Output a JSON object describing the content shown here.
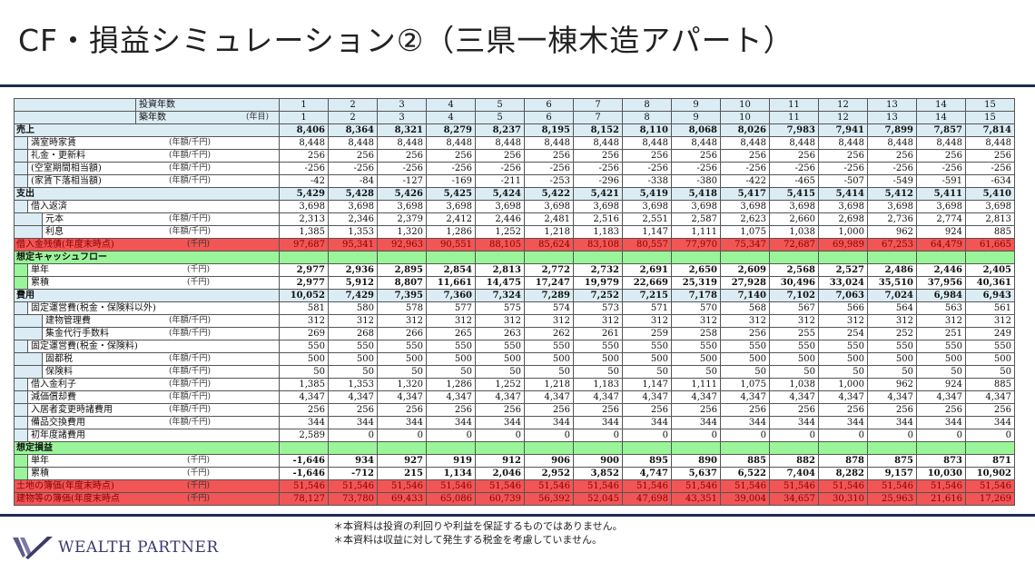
{
  "title": "CF・損益シミュレーション②（三県一棟木造アパート）",
  "table": {
    "rows": [
      {
        "label": "投資年数",
        "unit": "",
        "level": "h",
        "style": "header",
        "values": [
          "1",
          "2",
          "3",
          "4",
          "5",
          "6",
          "7",
          "8",
          "9",
          "10",
          "11",
          "12",
          "13",
          "14",
          "15"
        ]
      },
      {
        "label": "築年数",
        "unit": "(年目)",
        "level": "h",
        "style": "header",
        "values": [
          "1",
          "2",
          "3",
          "4",
          "5",
          "6",
          "7",
          "8",
          "9",
          "10",
          "11",
          "12",
          "13",
          "14",
          "15"
        ]
      },
      {
        "label": "売上",
        "unit": "",
        "level": 0,
        "style": "section",
        "values": [
          "8,406",
          "8,364",
          "8,321",
          "8,279",
          "8,237",
          "8,195",
          "8,152",
          "8,110",
          "8,068",
          "8,026",
          "7,983",
          "7,941",
          "7,899",
          "7,857",
          "7,814"
        ]
      },
      {
        "label": "満室時家賃",
        "unit": "(年額/千円)",
        "level": 1,
        "band": "blue",
        "style": "dash",
        "values": [
          "8,448",
          "8,448",
          "8,448",
          "8,448",
          "8,448",
          "8,448",
          "8,448",
          "8,448",
          "8,448",
          "8,448",
          "8,448",
          "8,448",
          "8,448",
          "8,448",
          "8,448"
        ]
      },
      {
        "label": "礼金・更新料",
        "unit": "(年額/千円)",
        "level": 1,
        "band": "blue",
        "style": "dash",
        "values": [
          "256",
          "256",
          "256",
          "256",
          "256",
          "256",
          "256",
          "256",
          "256",
          "256",
          "256",
          "256",
          "256",
          "256",
          "256"
        ]
      },
      {
        "label": "(空室期間相当額)",
        "unit": "(年額/千円)",
        "level": 1,
        "band": "blue",
        "style": "dash",
        "values": [
          "-256",
          "-256",
          "-256",
          "-256",
          "-256",
          "-256",
          "-256",
          "-256",
          "-256",
          "-256",
          "-256",
          "-256",
          "-256",
          "-256",
          "-256"
        ]
      },
      {
        "label": "(家賃下落相当額)",
        "unit": "(年額/千円)",
        "level": 1,
        "band": "blue",
        "style": "dash",
        "values": [
          "-42",
          "-84",
          "-127",
          "-169",
          "-211",
          "-253",
          "-296",
          "-338",
          "-380",
          "-422",
          "-465",
          "-507",
          "-549",
          "-591",
          "-634"
        ]
      },
      {
        "label": "支出",
        "unit": "",
        "level": 0,
        "style": "section",
        "values": [
          "5,429",
          "5,428",
          "5,426",
          "5,425",
          "5,424",
          "5,422",
          "5,421",
          "5,419",
          "5,418",
          "5,417",
          "5,415",
          "5,414",
          "5,412",
          "5,411",
          "5,410"
        ]
      },
      {
        "label": "借入返済",
        "unit": "",
        "level": 1,
        "band": "blue",
        "style": "",
        "values": [
          "3,698",
          "3,698",
          "3,698",
          "3,698",
          "3,698",
          "3,698",
          "3,698",
          "3,698",
          "3,698",
          "3,698",
          "3,698",
          "3,698",
          "3,698",
          "3,698",
          "3,698"
        ]
      },
      {
        "label": "元本",
        "unit": "(年額/千円)",
        "level": 2,
        "band": "blue",
        "style": "dash",
        "values": [
          "2,313",
          "2,346",
          "2,379",
          "2,412",
          "2,446",
          "2,481",
          "2,516",
          "2,551",
          "2,587",
          "2,623",
          "2,660",
          "2,698",
          "2,736",
          "2,774",
          "2,813"
        ]
      },
      {
        "label": "利息",
        "unit": "(年額/千円)",
        "level": 2,
        "band": "blue",
        "style": "",
        "values": [
          "1,385",
          "1,353",
          "1,320",
          "1,286",
          "1,252",
          "1,218",
          "1,183",
          "1,147",
          "1,111",
          "1,075",
          "1,038",
          "1,000",
          "962",
          "924",
          "885"
        ]
      },
      {
        "label": "借入金残債(年度末時点)",
        "unit": "(千円)",
        "level": 0,
        "style": "red",
        "values": [
          "97,687",
          "95,341",
          "92,963",
          "90,551",
          "88,105",
          "85,624",
          "83,108",
          "80,557",
          "77,970",
          "75,347",
          "72,687",
          "69,989",
          "67,253",
          "64,479",
          "61,665"
        ]
      },
      {
        "label": "想定キャッシュフロー",
        "unit": "",
        "level": 0,
        "style": "green",
        "values": [
          "",
          "",
          "",
          "",
          "",
          "",
          "",
          "",
          "",
          "",
          "",
          "",
          "",
          "",
          ""
        ]
      },
      {
        "label": "単年",
        "unit": "(千円)",
        "level": 1,
        "band": "green",
        "style": "bold",
        "values": [
          "2,977",
          "2,936",
          "2,895",
          "2,854",
          "2,813",
          "2,772",
          "2,732",
          "2,691",
          "2,650",
          "2,609",
          "2,568",
          "2,527",
          "2,486",
          "2,446",
          "2,405"
        ]
      },
      {
        "label": "累積",
        "unit": "(千円)",
        "level": 1,
        "band": "green",
        "style": "bold",
        "values": [
          "2,977",
          "5,912",
          "8,807",
          "11,661",
          "14,475",
          "17,247",
          "19,979",
          "22,669",
          "25,319",
          "27,928",
          "30,496",
          "33,024",
          "35,510",
          "37,956",
          "40,361"
        ]
      },
      {
        "label": "費用",
        "unit": "",
        "level": 0,
        "style": "section",
        "values": [
          "10,052",
          "7,429",
          "7,395",
          "7,360",
          "7,324",
          "7,289",
          "7,252",
          "7,215",
          "7,178",
          "7,140",
          "7,102",
          "7,063",
          "7,024",
          "6,984",
          "6,943"
        ]
      },
      {
        "label": "固定運営費(税金・保険料以外)",
        "unit": "",
        "level": 1,
        "band": "blue",
        "style": "",
        "values": [
          "581",
          "580",
          "578",
          "577",
          "575",
          "574",
          "573",
          "571",
          "570",
          "568",
          "567",
          "566",
          "564",
          "563",
          "561"
        ]
      },
      {
        "label": "建物管理費",
        "unit": "(年額/千円)",
        "level": 2,
        "band": "blue",
        "style": "dash",
        "values": [
          "312",
          "312",
          "312",
          "312",
          "312",
          "312",
          "312",
          "312",
          "312",
          "312",
          "312",
          "312",
          "312",
          "312",
          "312"
        ]
      },
      {
        "label": "集金代行手数料",
        "unit": "(年額/千円)",
        "level": 2,
        "band": "blue",
        "style": "",
        "values": [
          "269",
          "268",
          "266",
          "265",
          "263",
          "262",
          "261",
          "259",
          "258",
          "256",
          "255",
          "254",
          "252",
          "251",
          "249"
        ]
      },
      {
        "label": "固定運営費(税金・保険料)",
        "unit": "",
        "level": 1,
        "band": "blue",
        "style": "",
        "values": [
          "550",
          "550",
          "550",
          "550",
          "550",
          "550",
          "550",
          "550",
          "550",
          "550",
          "550",
          "550",
          "550",
          "550",
          "550"
        ]
      },
      {
        "label": "固都税",
        "unit": "(年額/千円)",
        "level": 2,
        "band": "blue",
        "style": "dash",
        "values": [
          "500",
          "500",
          "500",
          "500",
          "500",
          "500",
          "500",
          "500",
          "500",
          "500",
          "500",
          "500",
          "500",
          "500",
          "500"
        ]
      },
      {
        "label": "保険料",
        "unit": "(年額/千円)",
        "level": 2,
        "band": "blue",
        "style": "",
        "values": [
          "50",
          "50",
          "50",
          "50",
          "50",
          "50",
          "50",
          "50",
          "50",
          "50",
          "50",
          "50",
          "50",
          "50",
          "50"
        ]
      },
      {
        "label": "借入金利子",
        "unit": "(年額/千円)",
        "level": 1,
        "band": "blue",
        "style": "",
        "values": [
          "1,385",
          "1,353",
          "1,320",
          "1,286",
          "1,252",
          "1,218",
          "1,183",
          "1,147",
          "1,111",
          "1,075",
          "1,038",
          "1,000",
          "962",
          "924",
          "885"
        ]
      },
      {
        "label": "減価償却費",
        "unit": "(年額/千円)",
        "level": 1,
        "band": "blue",
        "style": "",
        "values": [
          "4,347",
          "4,347",
          "4,347",
          "4,347",
          "4,347",
          "4,347",
          "4,347",
          "4,347",
          "4,347",
          "4,347",
          "4,347",
          "4,347",
          "4,347",
          "4,347",
          "4,347"
        ]
      },
      {
        "label": "入居者変更時諸費用",
        "unit": "(年額/千円)",
        "level": 1,
        "band": "blue",
        "style": "",
        "values": [
          "256",
          "256",
          "256",
          "256",
          "256",
          "256",
          "256",
          "256",
          "256",
          "256",
          "256",
          "256",
          "256",
          "256",
          "256"
        ]
      },
      {
        "label": "備品交換費用",
        "unit": "(年額/千円)",
        "level": 1,
        "band": "blue",
        "style": "",
        "values": [
          "344",
          "344",
          "344",
          "344",
          "344",
          "344",
          "344",
          "344",
          "344",
          "344",
          "344",
          "344",
          "344",
          "344",
          "344"
        ]
      },
      {
        "label": "初年度諸費用",
        "unit": "",
        "level": 1,
        "band": "blue",
        "style": "",
        "values": [
          "2,589",
          "0",
          "0",
          "0",
          "0",
          "0",
          "0",
          "0",
          "0",
          "0",
          "0",
          "0",
          "0",
          "0",
          "0"
        ]
      },
      {
        "label": "想定損益",
        "unit": "",
        "level": 0,
        "style": "green",
        "values": [
          "",
          "",
          "",
          "",
          "",
          "",
          "",
          "",
          "",
          "",
          "",
          "",
          "",
          "",
          ""
        ]
      },
      {
        "label": "単年",
        "unit": "(千円)",
        "level": 1,
        "band": "green",
        "style": "bold",
        "values": [
          "-1,646",
          "934",
          "927",
          "919",
          "912",
          "906",
          "900",
          "895",
          "890",
          "885",
          "882",
          "878",
          "875",
          "873",
          "871"
        ]
      },
      {
        "label": "累積",
        "unit": "(千円)",
        "level": 1,
        "band": "green",
        "style": "bold",
        "values": [
          "-1,646",
          "-712",
          "215",
          "1,134",
          "2,046",
          "2,952",
          "3,852",
          "4,747",
          "5,637",
          "6,522",
          "7,404",
          "8,282",
          "9,157",
          "10,030",
          "10,902"
        ]
      },
      {
        "label": "土地の簿価(年度末時点)",
        "unit": "(千円)",
        "level": 0,
        "style": "red",
        "values": [
          "51,546",
          "51,546",
          "51,546",
          "51,546",
          "51,546",
          "51,546",
          "51,546",
          "51,546",
          "51,546",
          "51,546",
          "51,546",
          "51,546",
          "51,546",
          "51,546",
          "51,546"
        ]
      },
      {
        "label": "建物等の簿価(年度末時点",
        "unit": "(千円)",
        "level": 0,
        "style": "red",
        "values": [
          "78,127",
          "73,780",
          "69,433",
          "65,086",
          "60,739",
          "56,392",
          "52,045",
          "47,698",
          "43,351",
          "39,004",
          "34,657",
          "30,310",
          "25,963",
          "21,616",
          "17,269"
        ]
      }
    ]
  },
  "footer": {
    "notes": [
      "＊本資料は投資の利回りや利益を保証するものではありません。",
      "＊本資料は収益に対して発生する税金を考慮していません。"
    ],
    "logo_text": "WEALTH PARTNER"
  },
  "colors": {
    "navy": "#1f2d4f",
    "header_blue": "#dbecf4",
    "red": "#f25555",
    "green": "#9af59a"
  }
}
